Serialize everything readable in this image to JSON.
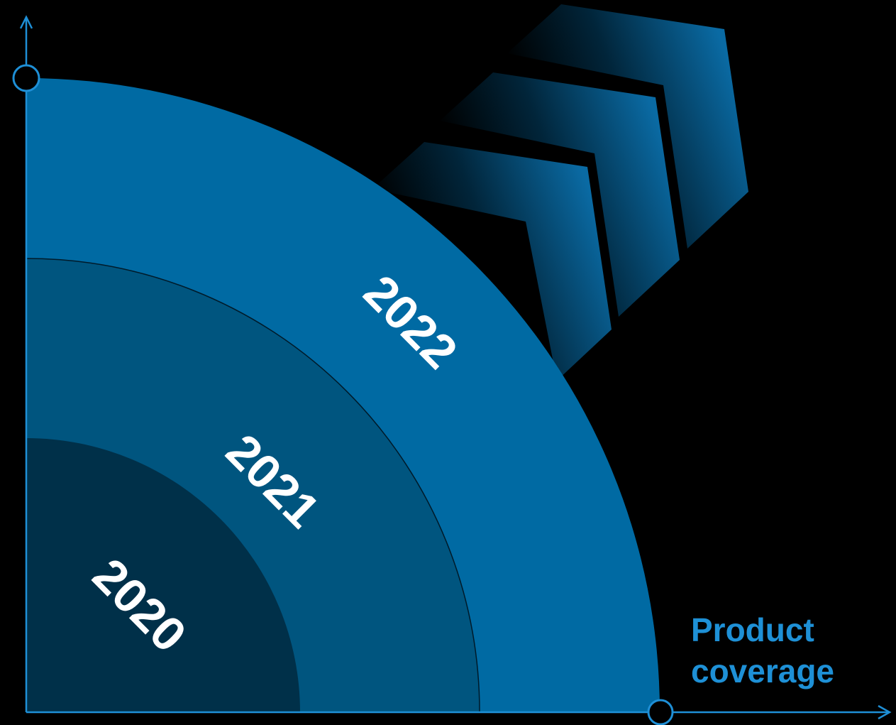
{
  "diagram": {
    "rings": [
      {
        "label": "2022",
        "color": "#006aa3"
      },
      {
        "label": "2021",
        "color": "#00557f"
      },
      {
        "label": "2020",
        "color": "#003049"
      }
    ],
    "axis_color": "#1e8fd6",
    "chevron_edge_color": "#1a90d8",
    "x_axis_label_line1": "Product",
    "x_axis_label_line2": "coverage"
  }
}
